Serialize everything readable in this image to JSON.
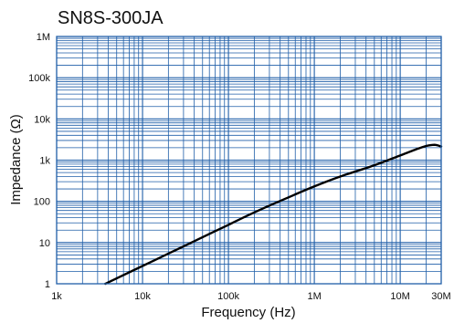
{
  "colors": {
    "grid": "#1f5ea8",
    "curve": "#000000",
    "background": "#ffffff"
  },
  "chart_data": {
    "type": "line",
    "title": "SN8S-300JA",
    "xlabel": "Frequency (Hz)",
    "ylabel": "Impedance (Ω)",
    "x_scale": "log",
    "y_scale": "log",
    "xlim": [
      1000,
      30000000
    ],
    "ylim": [
      1,
      1000000
    ],
    "grid": true,
    "x_ticks": [
      {
        "value": 1000,
        "label": "1k"
      },
      {
        "value": 10000,
        "label": "10k"
      },
      {
        "value": 100000,
        "label": "100k"
      },
      {
        "value": 1000000,
        "label": "1M"
      },
      {
        "value": 10000000,
        "label": "10M"
      },
      {
        "value": 30000000,
        "label": "30M"
      }
    ],
    "y_ticks": [
      {
        "value": 1,
        "label": "1"
      },
      {
        "value": 10,
        "label": "10"
      },
      {
        "value": 100,
        "label": "100"
      },
      {
        "value": 1000,
        "label": "1k"
      },
      {
        "value": 10000,
        "label": "10k"
      },
      {
        "value": 100000,
        "label": "100k"
      },
      {
        "value": 1000000,
        "label": "1M"
      }
    ],
    "series": [
      {
        "x": [
          3500,
          5000,
          10000,
          20000,
          50000,
          100000,
          200000,
          500000,
          1000000,
          2000000,
          5000000,
          10000000,
          15000000,
          20000000,
          25000000,
          30000000
        ],
        "y": [
          0.95,
          1.35,
          2.7,
          5.4,
          13.5,
          27,
          54,
          125,
          230,
          400,
          750,
          1300,
          1800,
          2200,
          2350,
          2150
        ]
      }
    ]
  }
}
